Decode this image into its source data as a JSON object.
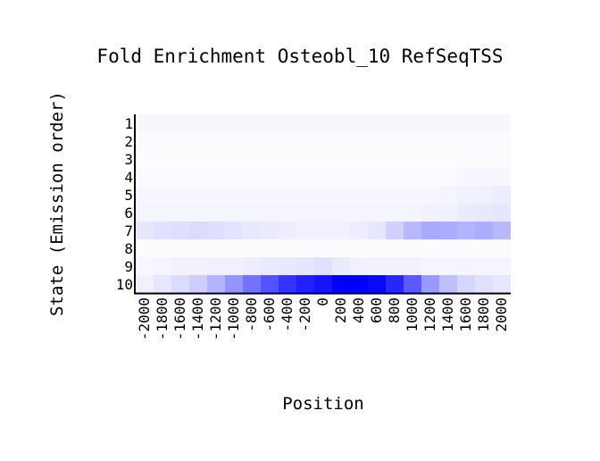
{
  "chart_data": {
    "type": "heatmap",
    "title": "Fold Enrichment Osteobl_10 RefSeqTSS",
    "xlabel": "Position",
    "ylabel": "State (Emission order)",
    "x": [
      -2000,
      -1800,
      -1600,
      -1400,
      -1200,
      -1000,
      -800,
      -600,
      -400,
      -200,
      0,
      200,
      400,
      600,
      800,
      1000,
      1200,
      1400,
      1600,
      1800,
      2000
    ],
    "x_tick_labels": [
      "-2000",
      "-1800",
      "-1600",
      "-1400",
      "-1200",
      "-1000",
      "-800",
      "-600",
      "-400",
      "-200",
      "0",
      "200",
      "400",
      "600",
      "800",
      "1000",
      "1200",
      "1400",
      "1600",
      "1800",
      "2000"
    ],
    "y": [
      1,
      2,
      3,
      4,
      5,
      6,
      7,
      8,
      9,
      10
    ],
    "y_tick_labels": [
      "1",
      "2",
      "3",
      "4",
      "5",
      "6",
      "7",
      "8",
      "9",
      "10"
    ],
    "color_low": "#ffffff",
    "color_high": "#0000ff",
    "value_range": [
      0,
      1
    ],
    "values": [
      [
        0.03,
        0.03,
        0.03,
        0.03,
        0.03,
        0.03,
        0.03,
        0.03,
        0.03,
        0.03,
        0.03,
        0.03,
        0.03,
        0.03,
        0.03,
        0.03,
        0.03,
        0.03,
        0.03,
        0.03,
        0.03
      ],
      [
        0.02,
        0.01,
        0.01,
        0.01,
        0.01,
        0.01,
        0.01,
        0.01,
        0.01,
        0.01,
        0.01,
        0.01,
        0.01,
        0.01,
        0.01,
        0.01,
        0.01,
        0.01,
        0.01,
        0.01,
        0.01
      ],
      [
        0.01,
        0.01,
        0.01,
        0.01,
        0.01,
        0.01,
        0.01,
        0.01,
        0.01,
        0.01,
        0.01,
        0.01,
        0.01,
        0.01,
        0.01,
        0.01,
        0.01,
        0.01,
        0.01,
        0.01,
        0.01
      ],
      [
        0.02,
        0.02,
        0.02,
        0.02,
        0.02,
        0.02,
        0.02,
        0.02,
        0.02,
        0.02,
        0.02,
        0.02,
        0.02,
        0.02,
        0.02,
        0.02,
        0.02,
        0.02,
        0.03,
        0.03,
        0.03
      ],
      [
        0.03,
        0.03,
        0.03,
        0.03,
        0.03,
        0.03,
        0.03,
        0.03,
        0.03,
        0.03,
        0.03,
        0.03,
        0.03,
        0.03,
        0.03,
        0.03,
        0.03,
        0.04,
        0.05,
        0.06,
        0.07
      ],
      [
        0.04,
        0.04,
        0.04,
        0.04,
        0.04,
        0.04,
        0.04,
        0.04,
        0.04,
        0.04,
        0.04,
        0.04,
        0.04,
        0.04,
        0.04,
        0.04,
        0.05,
        0.06,
        0.08,
        0.09,
        0.1
      ],
      [
        0.1,
        0.12,
        0.13,
        0.14,
        0.13,
        0.11,
        0.09,
        0.08,
        0.07,
        0.06,
        0.06,
        0.06,
        0.07,
        0.1,
        0.18,
        0.28,
        0.34,
        0.33,
        0.3,
        0.32,
        0.28
      ],
      [
        0.01,
        0.01,
        0.01,
        0.01,
        0.01,
        0.01,
        0.01,
        0.01,
        0.01,
        0.01,
        0.01,
        0.01,
        0.01,
        0.01,
        0.01,
        0.01,
        0.01,
        0.01,
        0.01,
        0.01,
        0.01
      ],
      [
        0.03,
        0.04,
        0.05,
        0.05,
        0.06,
        0.06,
        0.07,
        0.08,
        0.09,
        0.1,
        0.12,
        0.08,
        0.06,
        0.05,
        0.05,
        0.05,
        0.04,
        0.04,
        0.04,
        0.04,
        0.04
      ],
      [
        0.06,
        0.1,
        0.14,
        0.2,
        0.3,
        0.42,
        0.55,
        0.68,
        0.8,
        0.88,
        0.92,
        1.0,
        1.0,
        0.97,
        0.85,
        0.65,
        0.4,
        0.25,
        0.16,
        0.12,
        0.1
      ]
    ],
    "grid": false,
    "legend": "none"
  }
}
